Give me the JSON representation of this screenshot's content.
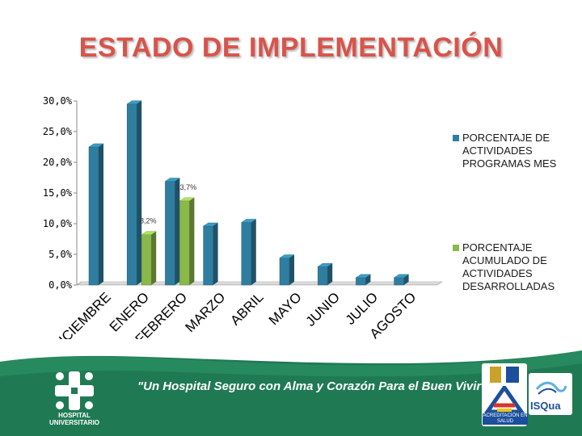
{
  "title": "ESTADO DE IMPLEMENTACIÓN",
  "chart_data": {
    "type": "bar",
    "categories": [
      "DICIEMBRE",
      "ENERO",
      "FEBRERO",
      "MARZO",
      "ABRIL",
      "MAYO",
      "JUNIO",
      "JULIO",
      "AGOSTO"
    ],
    "series": [
      {
        "name": "PORCENTAJE DE ACTIVIDADES PROGRAMAS MES",
        "color": "#2f7ea0",
        "values": [
          22.5,
          29.5,
          16.9,
          9.6,
          10.2,
          4.4,
          3.0,
          1.2,
          1.2
        ]
      },
      {
        "name": "PORCENTAJE ACUMULADO DE ACTIVIDADES DESARROLLADAS",
        "color": "#8ab84a",
        "values": [
          null,
          8.2,
          13.7,
          null,
          null,
          null,
          null,
          null,
          null
        ]
      }
    ],
    "data_labels": [
      {
        "category": "ENERO",
        "series": 1,
        "text": "8,2%"
      },
      {
        "category": "FEBRERO",
        "series": 1,
        "text": "13,7%"
      }
    ],
    "yticks": [
      "0,0%",
      "5,0%",
      "10,0%",
      "15,0%",
      "20,0%",
      "25,0%",
      "30,0%"
    ],
    "ylim": [
      0,
      30
    ],
    "title": "ESTADO DE IMPLEMENTACIÓN",
    "xlabel": "",
    "ylabel": "",
    "legend_position": "right",
    "grid": false
  },
  "footer": {
    "slogan": "\"Un Hospital Seguro con Alma y Corazón Para el Buen Vivir\"",
    "hospital_name": "HOSPITAL UNIVERSITARIO",
    "badges": {
      "isqua": "ISQua",
      "acreditacion": "ACREDITACIÓN EN SALUD"
    },
    "color": "#1f7a54"
  }
}
